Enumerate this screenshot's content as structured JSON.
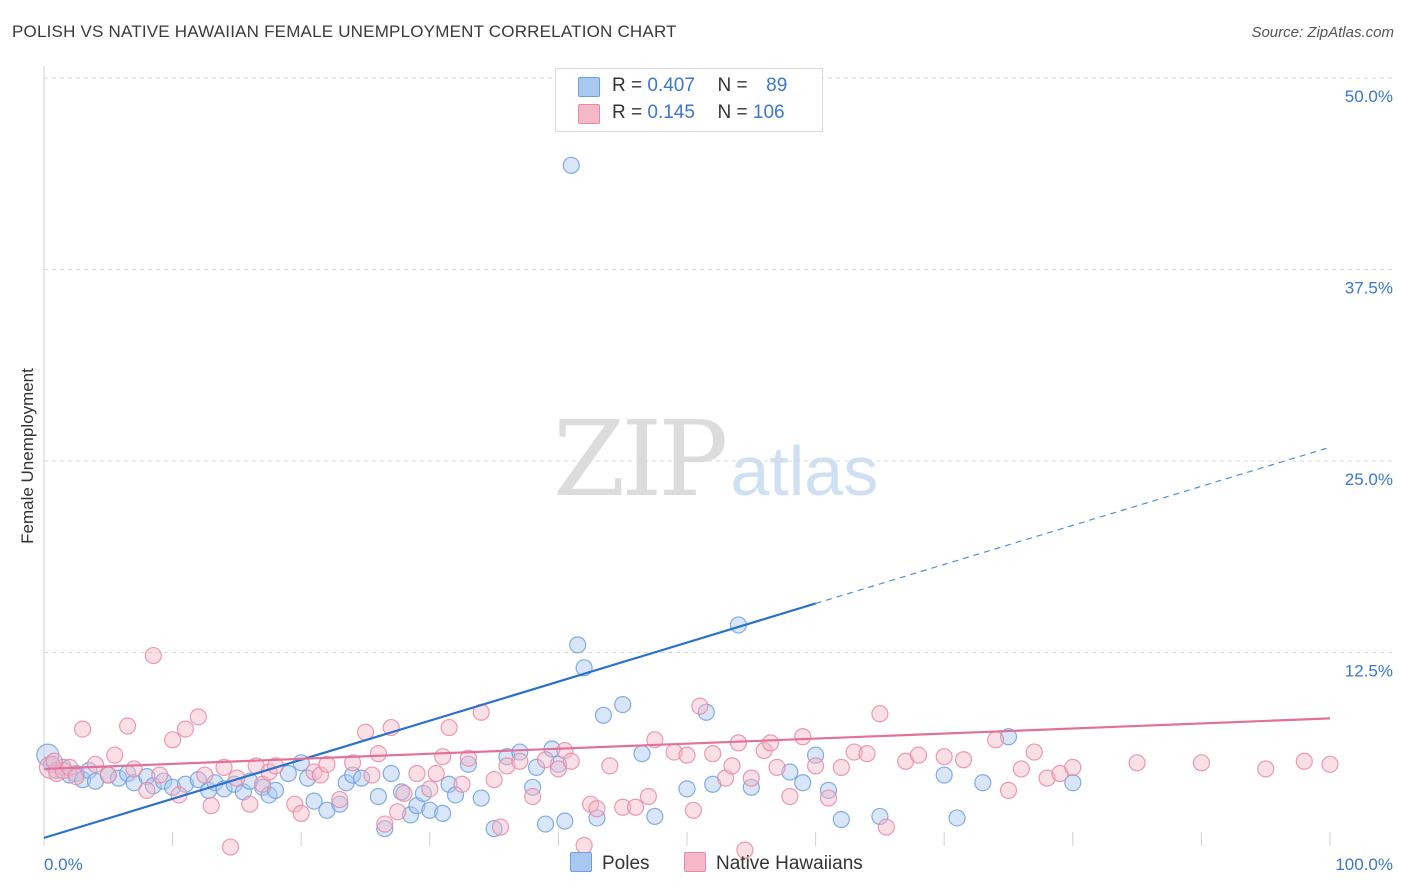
{
  "title": "POLISH VS NATIVE HAWAIIAN FEMALE UNEMPLOYMENT CORRELATION CHART",
  "source": "Source: ZipAtlas.com",
  "watermark": {
    "zip": "ZIP",
    "atlas": "atlas"
  },
  "legend": [
    {
      "r_label": "R =",
      "r_value": "0.407",
      "n_label": "N =",
      "n_value": "89",
      "color": "#a9c8f0"
    },
    {
      "r_label": "R =",
      "r_value": "0.145",
      "n_label": "N =",
      "n_value": "106",
      "color": "#f5b8c8"
    }
  ],
  "bottom_legend": [
    {
      "label": "Poles",
      "color": "#a9c8f0"
    },
    {
      "label": "Native Hawaiians",
      "color": "#f5b8c8"
    }
  ],
  "chart_data": {
    "type": "scatter",
    "title": "POLISH VS NATIVE HAWAIIAN FEMALE UNEMPLOYMENT CORRELATION CHART",
    "xlabel": "",
    "ylabel": "Female Unemployment",
    "xlim": [
      0,
      100
    ],
    "ylim": [
      0,
      50
    ],
    "x_tick_labels": [
      "0.0%",
      "100.0%"
    ],
    "y_ticks": [
      12.5,
      25.0,
      37.5,
      50.0
    ],
    "y_tick_labels": [
      "12.5%",
      "25.0%",
      "37.5%",
      "50.0%"
    ],
    "grid": true,
    "series": [
      {
        "name": "Poles",
        "color": "#6fa0dc",
        "fill": "#a9c8f0",
        "trend": {
          "x0": 0,
          "y0": 0.4,
          "x1": 60,
          "y1": 15.7,
          "x_dash_end": 100,
          "y_dash_end": 25.9,
          "color": "#2a72c9"
        },
        "points": [
          [
            0.3,
            5.8
          ],
          [
            0.6,
            5.2
          ],
          [
            1.0,
            4.8
          ],
          [
            1.5,
            5.0
          ],
          [
            2.0,
            4.5
          ],
          [
            2.5,
            4.6
          ],
          [
            3.0,
            4.2
          ],
          [
            3.5,
            4.8
          ],
          [
            4.0,
            4.1
          ],
          [
            5.0,
            4.5
          ],
          [
            5.8,
            4.3
          ],
          [
            6.5,
            4.6
          ],
          [
            7.0,
            4.0
          ],
          [
            8.0,
            4.4
          ],
          [
            8.5,
            3.8
          ],
          [
            9.3,
            4.1
          ],
          [
            10.0,
            3.7
          ],
          [
            11.0,
            3.9
          ],
          [
            12.0,
            4.2
          ],
          [
            12.8,
            3.5
          ],
          [
            13.3,
            4.0
          ],
          [
            14.0,
            3.6
          ],
          [
            14.8,
            3.9
          ],
          [
            15.5,
            3.4
          ],
          [
            16.0,
            4.1
          ],
          [
            17.0,
            3.7
          ],
          [
            17.5,
            3.2
          ],
          [
            18.0,
            3.5
          ],
          [
            19.0,
            4.6
          ],
          [
            20.0,
            5.3
          ],
          [
            20.5,
            4.3
          ],
          [
            21.0,
            2.8
          ],
          [
            22.0,
            2.2
          ],
          [
            23.0,
            2.6
          ],
          [
            23.5,
            4.0
          ],
          [
            24.0,
            4.5
          ],
          [
            24.7,
            4.3
          ],
          [
            26.0,
            3.1
          ],
          [
            26.5,
            1.0
          ],
          [
            27.0,
            4.6
          ],
          [
            27.8,
            3.4
          ],
          [
            28.5,
            1.9
          ],
          [
            29.0,
            2.5
          ],
          [
            29.5,
            3.3
          ],
          [
            30.0,
            2.2
          ],
          [
            31.0,
            2.0
          ],
          [
            31.5,
            3.9
          ],
          [
            32.0,
            3.2
          ],
          [
            33.0,
            5.2
          ],
          [
            34.0,
            3.0
          ],
          [
            35.0,
            1.0
          ],
          [
            36.0,
            5.7
          ],
          [
            37.0,
            6.0
          ],
          [
            38.0,
            3.7
          ],
          [
            38.3,
            5.0
          ],
          [
            39.0,
            1.3
          ],
          [
            39.5,
            6.2
          ],
          [
            40.0,
            5.2
          ],
          [
            40.5,
            1.5
          ],
          [
            41.0,
            44.3
          ],
          [
            41.5,
            13.0
          ],
          [
            42.0,
            11.5
          ],
          [
            43.0,
            1.7
          ],
          [
            43.5,
            8.4
          ],
          [
            45.0,
            9.1
          ],
          [
            46.5,
            5.9
          ],
          [
            47.5,
            1.8
          ],
          [
            50.0,
            3.6
          ],
          [
            51.5,
            8.6
          ],
          [
            52.0,
            3.9
          ],
          [
            54.0,
            14.3
          ],
          [
            55.0,
            3.7
          ],
          [
            58.0,
            4.7
          ],
          [
            59.0,
            4.0
          ],
          [
            60.0,
            5.8
          ],
          [
            61.0,
            3.5
          ],
          [
            62.0,
            1.6
          ],
          [
            65.0,
            1.8
          ],
          [
            70.0,
            4.5
          ],
          [
            71.0,
            1.7
          ],
          [
            73.0,
            4.0
          ],
          [
            75.0,
            7.0
          ],
          [
            80.0,
            4.0
          ]
        ]
      },
      {
        "name": "Native Hawaiians",
        "color": "#e88aa5",
        "fill": "#f5b8c8",
        "trend": {
          "x0": 0,
          "y0": 4.9,
          "x1": 100,
          "y1": 8.2,
          "color": "#e2709a"
        },
        "points": [
          [
            0.5,
            5.0
          ],
          [
            1.0,
            4.6
          ],
          [
            1.5,
            4.8
          ],
          [
            2.0,
            5.0
          ],
          [
            2.5,
            4.4
          ],
          [
            3.0,
            7.5
          ],
          [
            4.0,
            5.2
          ],
          [
            5.0,
            4.5
          ],
          [
            5.5,
            5.8
          ],
          [
            6.5,
            7.7
          ],
          [
            7.0,
            4.9
          ],
          [
            8.0,
            3.5
          ],
          [
            8.5,
            12.3
          ],
          [
            9.0,
            4.5
          ],
          [
            10.0,
            6.8
          ],
          [
            10.5,
            3.2
          ],
          [
            11.0,
            7.5
          ],
          [
            12.0,
            8.3
          ],
          [
            12.5,
            4.5
          ],
          [
            13.0,
            2.5
          ],
          [
            14.0,
            5.0
          ],
          [
            14.5,
            -0.2
          ],
          [
            15.0,
            4.3
          ],
          [
            16.0,
            2.6
          ],
          [
            16.5,
            5.1
          ],
          [
            17.0,
            3.9
          ],
          [
            17.5,
            4.7
          ],
          [
            18.0,
            5.1
          ],
          [
            19.5,
            2.6
          ],
          [
            20.0,
            2.0
          ],
          [
            21.0,
            4.7
          ],
          [
            21.5,
            4.5
          ],
          [
            22.0,
            5.2
          ],
          [
            23.0,
            2.9
          ],
          [
            24.0,
            5.3
          ],
          [
            25.0,
            7.3
          ],
          [
            25.5,
            4.5
          ],
          [
            26.0,
            5.9
          ],
          [
            26.5,
            1.3
          ],
          [
            27.0,
            7.6
          ],
          [
            27.5,
            2.1
          ],
          [
            28.0,
            3.3
          ],
          [
            29.0,
            4.6
          ],
          [
            30.0,
            3.6
          ],
          [
            30.5,
            4.6
          ],
          [
            31.0,
            5.7
          ],
          [
            31.5,
            7.6
          ],
          [
            32.5,
            3.9
          ],
          [
            33.0,
            5.6
          ],
          [
            34.0,
            8.6
          ],
          [
            35.0,
            4.2
          ],
          [
            35.5,
            1.1
          ],
          [
            36.0,
            5.1
          ],
          [
            37.0,
            5.4
          ],
          [
            38.0,
            3.1
          ],
          [
            39.0,
            5.5
          ],
          [
            40.0,
            4.9
          ],
          [
            40.5,
            6.1
          ],
          [
            41.0,
            5.4
          ],
          [
            42.5,
            2.6
          ],
          [
            43.0,
            2.3
          ],
          [
            44.0,
            5.1
          ],
          [
            45.0,
            2.4
          ],
          [
            46.0,
            2.4
          ],
          [
            47.0,
            3.1
          ],
          [
            47.5,
            6.8
          ],
          [
            49.0,
            6.0
          ],
          [
            50.0,
            5.8
          ],
          [
            50.5,
            2.2
          ],
          [
            51.0,
            9.0
          ],
          [
            52.0,
            5.9
          ],
          [
            53.0,
            4.3
          ],
          [
            53.5,
            5.1
          ],
          [
            54.0,
            6.6
          ],
          [
            55.0,
            4.3
          ],
          [
            56.0,
            6.1
          ],
          [
            56.5,
            6.6
          ],
          [
            57.0,
            5.0
          ],
          [
            58.0,
            3.1
          ],
          [
            59.0,
            7.0
          ],
          [
            60.0,
            5.1
          ],
          [
            61.0,
            3.0
          ],
          [
            62.0,
            5.0
          ],
          [
            63.0,
            6.0
          ],
          [
            64.0,
            5.9
          ],
          [
            65.0,
            8.5
          ],
          [
            65.5,
            1.1
          ],
          [
            67.0,
            5.4
          ],
          [
            68.0,
            5.8
          ],
          [
            70.0,
            5.7
          ],
          [
            71.5,
            5.5
          ],
          [
            74.0,
            6.8
          ],
          [
            75.0,
            3.5
          ],
          [
            76.0,
            4.9
          ],
          [
            77.0,
            6.0
          ],
          [
            78.0,
            4.3
          ],
          [
            79.0,
            4.6
          ],
          [
            80.0,
            5.0
          ],
          [
            85.0,
            5.3
          ],
          [
            90.0,
            5.3
          ],
          [
            95.0,
            4.9
          ],
          [
            98.0,
            5.4
          ],
          [
            100.0,
            5.2
          ],
          [
            0.8,
            5.4
          ],
          [
            42.0,
            -0.1
          ],
          [
            54.5,
            -0.4
          ]
        ]
      }
    ]
  }
}
